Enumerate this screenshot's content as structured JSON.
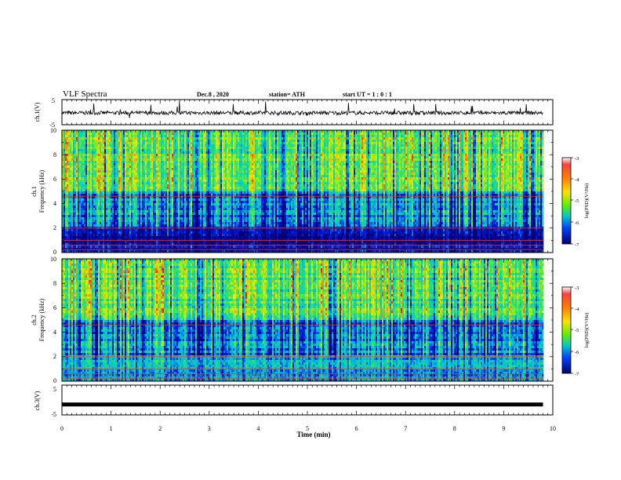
{
  "header": {
    "title": "VLF Spectra",
    "date": "Dec.8 , 2020",
    "station": "station= ATH",
    "start": "start UT = 1 : 0 : 1"
  },
  "colorbar": {
    "label": "log(PSD)(V²/Hz)",
    "ticks": [
      "-3",
      "-4",
      "-5",
      "-6",
      "-7"
    ],
    "colors": [
      "#d40000",
      "#ff6a00",
      "#ffe400",
      "#7cf000",
      "#00c8c8",
      "#0050ff",
      "#0000a0"
    ]
  },
  "chart_data": [
    {
      "type": "line",
      "panel": "ch.1(V)",
      "ylabel": "ch.1(V)",
      "yticks": [
        "5",
        "-5"
      ],
      "ylim": [
        -5,
        5
      ],
      "x_range_min": [
        0,
        9.8
      ],
      "description_values": {
        "baseline": -0.3,
        "noise_amplitude": 1.5
      },
      "color": "#000000"
    },
    {
      "type": "heatmap",
      "panel": "ch.1",
      "ylabel": "ch.1\nFrequency (kHz)",
      "yticks": [
        "10",
        "8",
        "6",
        "4",
        "2",
        "0"
      ],
      "ylim": [
        0,
        10
      ],
      "xlim": [
        0,
        10
      ],
      "data_end_min": 9.8
    },
    {
      "type": "heatmap",
      "panel": "ch.2",
      "ylabel": "ch.2\nFrequency (kHz)",
      "yticks": [
        "10",
        "8",
        "6",
        "4",
        "2",
        "0"
      ],
      "ylim": [
        0,
        10
      ],
      "xlim": [
        0,
        10
      ],
      "data_end_min": 9.8
    },
    {
      "type": "line",
      "panel": "ch.3(V)",
      "ylabel": "ch.3(V)",
      "yticks": [
        "5",
        "-5"
      ],
      "ylim": [
        -5,
        5
      ],
      "x_range_min": [
        0,
        9.8
      ],
      "description_values": {
        "baseline": -1.5
      },
      "color": "#000000"
    }
  ],
  "xaxis": {
    "label": "Time (min)",
    "ticks": [
      "0",
      "1",
      "2",
      "3",
      "4",
      "5",
      "6",
      "7",
      "8",
      "9",
      "10"
    ],
    "xlim": [
      0,
      10
    ]
  },
  "ylabels": {
    "ch1": "ch.1(V)",
    "spec1_ch": "ch.1",
    "spec1_freq": "Frequency (kHz)",
    "spec2_ch": "ch.2",
    "spec2_freq": "Frequency (kHz)",
    "ch3": "ch.3(V)"
  }
}
